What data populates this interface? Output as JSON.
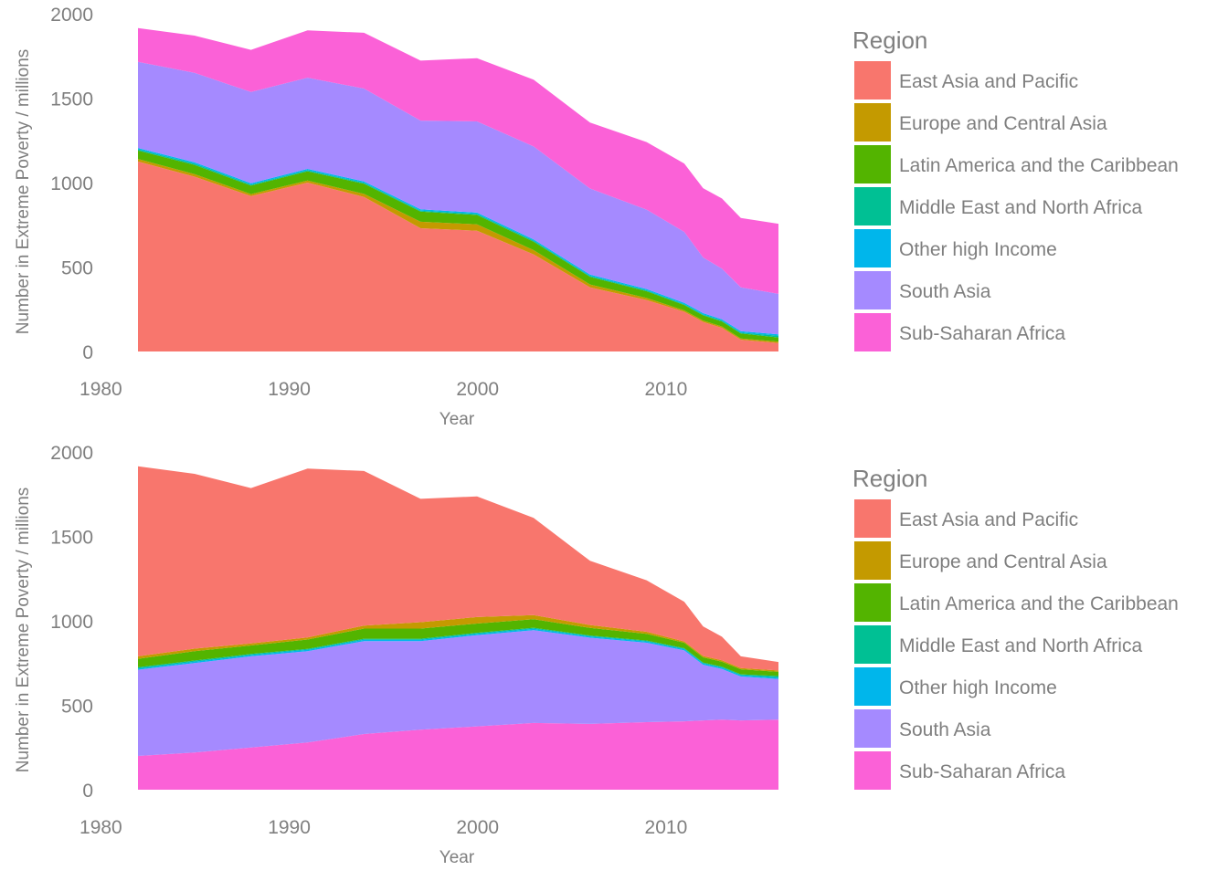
{
  "chart_data": [
    {
      "type": "area",
      "stacking": "bottom-up",
      "xlabel": "Year",
      "ylabel": "Number in Extreme Poverty / millions",
      "xlim": [
        1980,
        2015
      ],
      "ylim": [
        0,
        2000
      ],
      "x_ticks": [
        1980,
        1990,
        2000,
        2010
      ],
      "y_ticks": [
        0,
        500,
        1000,
        1500,
        2000
      ],
      "grid": false,
      "legend_title": "Region",
      "legend_position": "right",
      "x": [
        1981,
        1984,
        1987,
        1990,
        1993,
        1996,
        1999,
        2002,
        2005,
        2008,
        2010,
        2011,
        2012,
        2013,
        2015
      ],
      "series": [
        {
          "name": "East Asia and Pacific",
          "color": "#F8766D",
          "values": [
            1125,
            1035,
            920,
            1000,
            915,
            730,
            715,
            575,
            380,
            305,
            235,
            175,
            140,
            70,
            50
          ]
        },
        {
          "name": "Europe and Central Asia",
          "color": "#C49A00",
          "values": [
            15,
            15,
            12,
            12,
            18,
            38,
            38,
            25,
            17,
            12,
            8,
            8,
            8,
            7,
            8
          ]
        },
        {
          "name": "Latin America and the Caribbean",
          "color": "#53B400",
          "values": [
            50,
            55,
            50,
            55,
            60,
            60,
            55,
            50,
            45,
            40,
            32,
            31,
            30,
            30,
            25
          ]
        },
        {
          "name": "Middle East and North Africa",
          "color": "#00C094",
          "values": [
            7,
            7,
            6,
            6,
            6,
            6,
            6,
            6,
            5,
            5,
            5,
            5,
            5,
            5,
            10
          ]
        },
        {
          "name": "Other high Income",
          "color": "#00B6EB",
          "values": [
            8,
            8,
            8,
            8,
            8,
            8,
            8,
            8,
            8,
            8,
            8,
            8,
            8,
            8,
            8
          ]
        },
        {
          "name": "South Asia",
          "color": "#A58AFF",
          "values": [
            510,
            530,
            540,
            540,
            550,
            525,
            540,
            550,
            510,
            470,
            420,
            330,
            300,
            260,
            240
          ]
        },
        {
          "name": "Sub-Saharan Africa",
          "color": "#FB61D7",
          "values": [
            200,
            220,
            250,
            280,
            330,
            355,
            375,
            395,
            390,
            400,
            405,
            410,
            415,
            410,
            415
          ]
        }
      ]
    },
    {
      "type": "area",
      "stacking": "top-down",
      "xlabel": "Year",
      "ylabel": "Number in Extreme Poverty / millions",
      "xlim": [
        1980,
        2015
      ],
      "ylim": [
        0,
        2000
      ],
      "x_ticks": [
        1980,
        1990,
        2000,
        2010
      ],
      "y_ticks": [
        0,
        500,
        1000,
        1500,
        2000
      ],
      "grid": false,
      "legend_title": "Region",
      "legend_position": "right",
      "x": [
        1981,
        1984,
        1987,
        1990,
        1993,
        1996,
        1999,
        2002,
        2005,
        2008,
        2010,
        2011,
        2012,
        2013,
        2015
      ],
      "series": [
        {
          "name": "East Asia and Pacific",
          "color": "#F8766D",
          "values": [
            1125,
            1035,
            920,
            1000,
            915,
            730,
            715,
            575,
            380,
            305,
            235,
            175,
            140,
            70,
            50
          ]
        },
        {
          "name": "Europe and Central Asia",
          "color": "#C49A00",
          "values": [
            15,
            15,
            12,
            12,
            18,
            38,
            38,
            25,
            17,
            12,
            8,
            8,
            8,
            7,
            8
          ]
        },
        {
          "name": "Latin America and the Caribbean",
          "color": "#53B400",
          "values": [
            50,
            55,
            50,
            55,
            60,
            60,
            55,
            50,
            45,
            40,
            32,
            31,
            30,
            30,
            25
          ]
        },
        {
          "name": "Middle East and North Africa",
          "color": "#00C094",
          "values": [
            7,
            7,
            6,
            6,
            6,
            6,
            6,
            6,
            5,
            5,
            5,
            5,
            5,
            5,
            10
          ]
        },
        {
          "name": "Other high Income",
          "color": "#00B6EB",
          "values": [
            8,
            8,
            8,
            8,
            8,
            8,
            8,
            8,
            8,
            8,
            8,
            8,
            8,
            8,
            8
          ]
        },
        {
          "name": "South Asia",
          "color": "#A58AFF",
          "values": [
            510,
            530,
            540,
            540,
            550,
            525,
            540,
            550,
            510,
            470,
            420,
            330,
            300,
            260,
            240
          ]
        },
        {
          "name": "Sub-Saharan Africa",
          "color": "#FB61D7",
          "values": [
            200,
            220,
            250,
            280,
            330,
            355,
            375,
            395,
            390,
            400,
            405,
            410,
            415,
            410,
            415
          ]
        }
      ]
    }
  ]
}
